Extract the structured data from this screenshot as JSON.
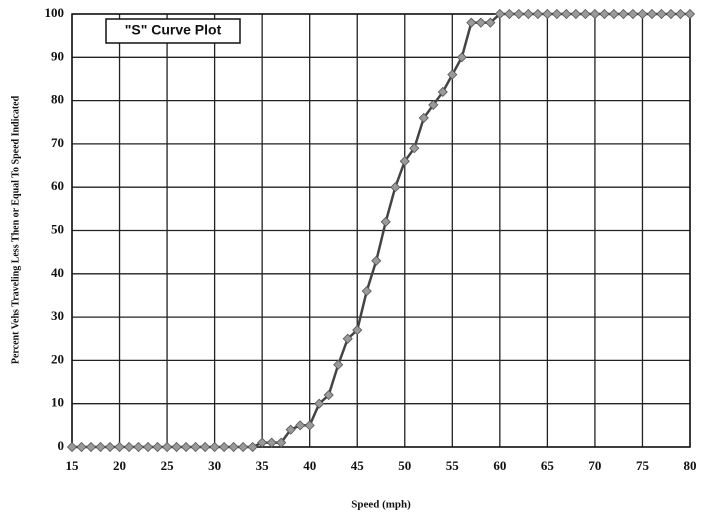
{
  "chart_data": {
    "type": "line",
    "title": "\"S\" Curve Plot",
    "x_label": "Speed (mph)",
    "y_label": "Percent Vehs Traveling Less Then or Equal To Speed Indicated",
    "x": [
      15,
      16,
      17,
      18,
      19,
      20,
      21,
      22,
      23,
      24,
      25,
      26,
      27,
      28,
      29,
      30,
      31,
      32,
      33,
      34,
      35,
      36,
      37,
      38,
      39,
      40,
      41,
      42,
      43,
      44,
      45,
      46,
      47,
      48,
      49,
      50,
      51,
      52,
      53,
      54,
      55,
      56,
      57,
      58,
      59,
      60,
      61,
      62,
      63,
      64,
      65,
      66,
      67,
      68,
      69,
      70,
      71,
      72,
      73,
      74,
      75,
      76,
      77,
      78,
      79,
      80
    ],
    "series": [
      {
        "color": "#444444",
        "marker_color": "#9a9a9a",
        "values": [
          0,
          0,
          0,
          0,
          0,
          0,
          0,
          0,
          0,
          0,
          0,
          0,
          0,
          0,
          0,
          0,
          0,
          0,
          0,
          0,
          1,
          1,
          1,
          4,
          5,
          5,
          10,
          12,
          19,
          25,
          27,
          36,
          43,
          52,
          60,
          66,
          69,
          76,
          79,
          82,
          86,
          90,
          98,
          98,
          98,
          100,
          100,
          100,
          100,
          100,
          100,
          100,
          100,
          100,
          100,
          100,
          100,
          100,
          100,
          100,
          100,
          100,
          100,
          100,
          100,
          100
        ]
      }
    ],
    "xlim": [
      15,
      80
    ],
    "xticks": [
      15,
      20,
      25,
      30,
      35,
      40,
      45,
      50,
      55,
      60,
      65,
      70,
      75,
      80
    ],
    "ylim": [
      0,
      100
    ],
    "yticks": [
      0,
      10,
      20,
      30,
      40,
      50,
      60,
      70,
      80,
      90,
      100
    ],
    "grid": true
  }
}
